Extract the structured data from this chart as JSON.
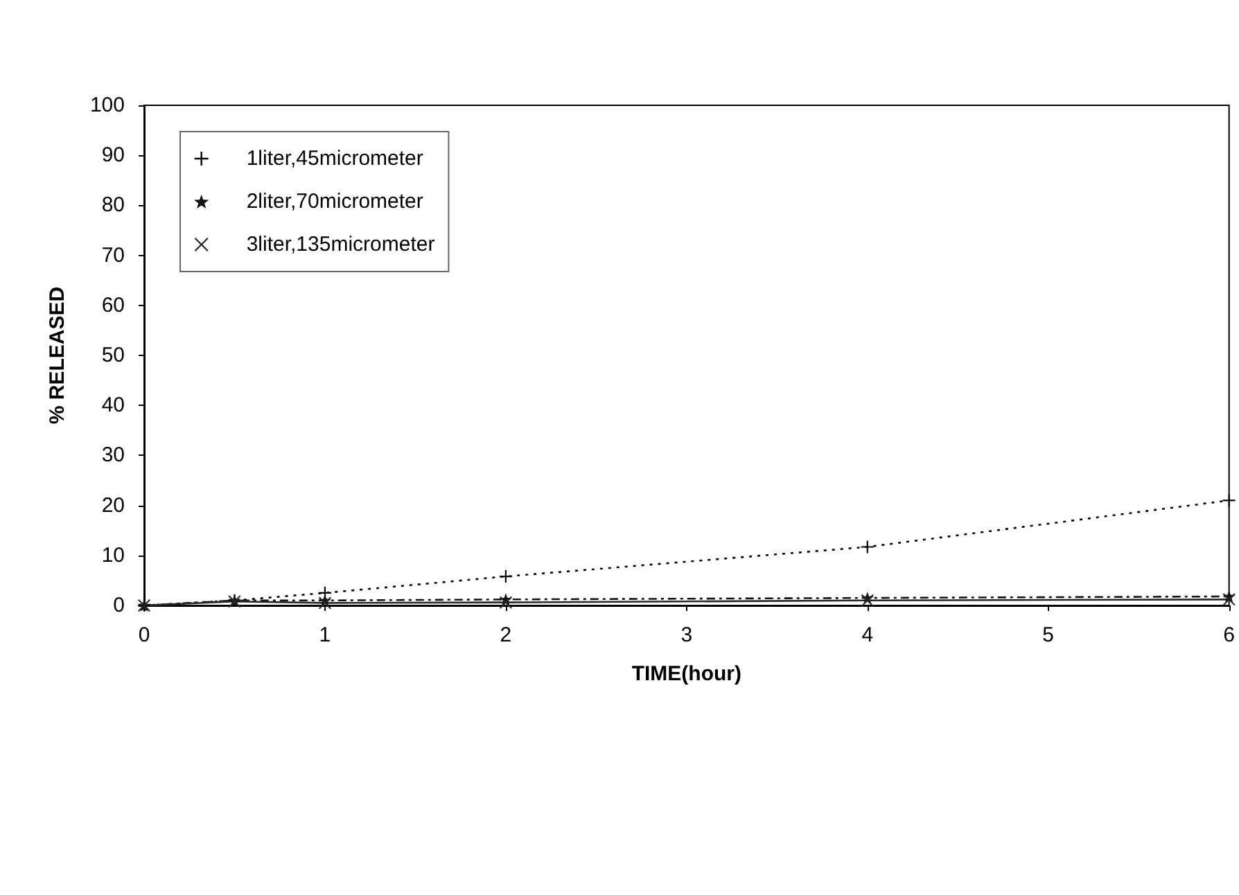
{
  "chart_data": {
    "type": "line",
    "xlabel": "TIME(hour)",
    "ylabel": "% RELEASED",
    "x": [
      0,
      0.5,
      1,
      2,
      4,
      6
    ],
    "series": [
      {
        "name": "1liter,45micrometer",
        "color": "#000000",
        "marker": "cross",
        "line_style": "dotted",
        "values": [
          0,
          1,
          2.5,
          5.8,
          11.7,
          21
        ]
      },
      {
        "name": "2liter,70micrometer",
        "color": "#141414",
        "marker": "star",
        "line_style": "dashed",
        "values": [
          0,
          1,
          1,
          1.2,
          1.5,
          1.8
        ]
      },
      {
        "name": "3liter,135micrometer",
        "color": "#282828",
        "marker": "x",
        "line_style": "solid",
        "values": [
          0,
          0.8,
          0.5,
          0.6,
          1,
          1.2
        ]
      }
    ],
    "xlim": [
      0,
      6
    ],
    "xticks": [
      0,
      1,
      2,
      3,
      4,
      5,
      6
    ],
    "ylim": [
      0,
      100
    ],
    "yticks": [
      0,
      10,
      20,
      30,
      40,
      50,
      60,
      70,
      80,
      90,
      100
    ],
    "grid": false,
    "legend": "top left"
  }
}
